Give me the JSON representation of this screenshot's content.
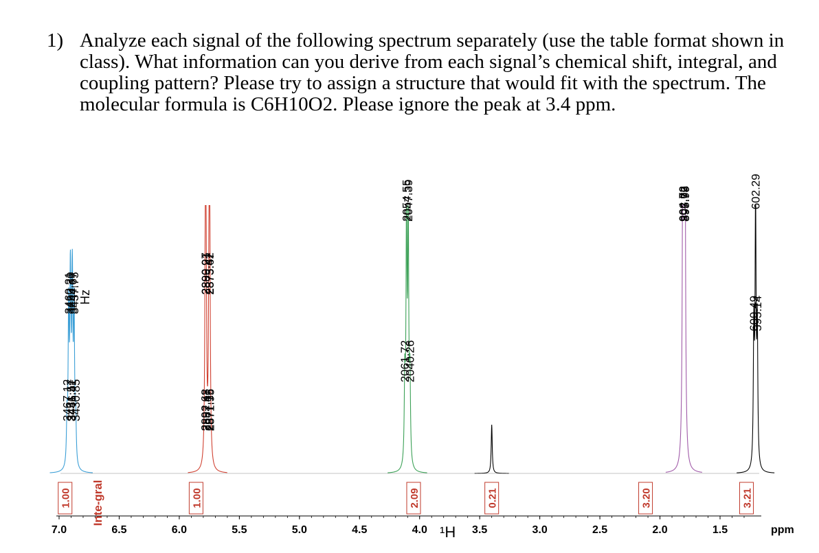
{
  "question": {
    "number": "1)",
    "text": "Analyze each signal of the following spectrum separately (use the table format shown in class). What information can you derive from each signal’s chemical shift, integral, and coupling pattern? Please try to assign a structure that would fit with the spectrum. The molecular formula is C6H10O2. Please ignore the peak at 3.4 ppm."
  },
  "chart_data": {
    "type": "line",
    "title": "",
    "xlabel": "ppm",
    "nucleus_label": "¹H",
    "xlim": [
      7.0,
      1.2
    ],
    "x_ticks": [
      "7.0",
      "6.5",
      "6.0",
      "5.5",
      "5.0",
      "4.5",
      "4.0",
      "3.5",
      "3.0",
      "2.5",
      "2.0",
      "1.5"
    ],
    "hz_label": "Hz",
    "integral_word": "Inte-gral",
    "integrals": [
      {
        "value": "1.00",
        "center_ppm": 6.95
      },
      {
        "value": "1.00",
        "center_ppm": 5.86
      },
      {
        "value": "2.09",
        "center_ppm": 4.05
      },
      {
        "value": "0.21",
        "center_ppm": 3.4
      },
      {
        "value": "3.20",
        "center_ppm": 2.12
      },
      {
        "value": "3.21",
        "center_ppm": 1.28
      }
    ],
    "series": [
      {
        "color": "#3a9ed6",
        "peaks_hz": [
          3467.12,
          3460.21,
          3453.3,
          3451.57,
          3446.41,
          3444.67,
          3437.75,
          3430.85
        ],
        "heights": [
          0.18,
          0.62,
          0.62,
          0.18,
          0.18,
          0.62,
          0.62,
          0.18
        ],
        "labels": [
          "3467.12",
          "3460.21",
          "3453.30",
          "3451.57",
          "3446.41",
          "3444.67",
          "3437.75",
          "3430.85"
        ]
      },
      {
        "color": "#d04030",
        "peaks_hz": [
          2892.68,
          2890.97,
          2889.21,
          2887.47,
          2877.16,
          2875.42,
          2873.67,
          2871.95
        ],
        "heights": [
          0.14,
          0.7,
          0.7,
          0.14,
          0.14,
          0.7,
          0.7,
          0.14
        ],
        "labels": [
          "2892.68",
          "2890.97",
          "2889.21",
          "2887.47",
          "2877.16",
          "2875.42",
          "2873.67",
          "2871.95"
        ]
      },
      {
        "color": "#3aa055",
        "peaks_hz": [
          2061.72,
          2054.55,
          2047.39,
          2040.26
        ],
        "heights": [
          0.34,
          1.0,
          1.0,
          0.34
        ],
        "labels": [
          "2061.72",
          "2054.55",
          "2047.39",
          "2040.26"
        ]
      },
      {
        "color": "#000000",
        "peaks_hz": [
          1700.0
        ],
        "heights": [
          0.2
        ],
        "labels": []
      },
      {
        "color": "#a05aa8",
        "peaks_hz": [
          904.72,
          902.92,
          897.78,
          895.99
        ],
        "heights": [
          1.0,
          1.0,
          1.0,
          1.0
        ],
        "labels": [
          "904.72",
          "902.92",
          "897.78",
          "895.99"
        ]
      },
      {
        "color": "#000000",
        "peaks_hz": [
          609.49,
          602.29,
          595.14
        ],
        "heights": [
          0.55,
          1.05,
          0.55
        ],
        "labels": [
          "609.49",
          "602.29",
          "595.14"
        ]
      }
    ]
  }
}
